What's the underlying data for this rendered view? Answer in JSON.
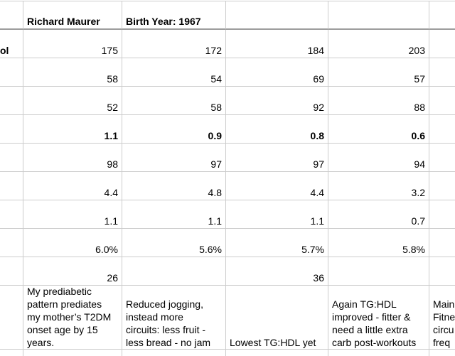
{
  "header": {
    "name": "Richard Maurer",
    "birth_year": "Birth Year: 1967"
  },
  "rows": [
    {
      "label": "ol",
      "v": [
        "175",
        "172",
        "184",
        "203"
      ]
    },
    {
      "label": "",
      "v": [
        "58",
        "54",
        "69",
        "57"
      ]
    },
    {
      "label": "",
      "v": [
        "52",
        "58",
        "92",
        "88"
      ]
    },
    {
      "label": "",
      "v": [
        "1.1",
        "0.9",
        "0.8",
        "0.6"
      ],
      "bold": true
    },
    {
      "label": "",
      "v": [
        "98",
        "97",
        "97",
        "94"
      ]
    },
    {
      "label": "",
      "v": [
        "4.4",
        "4.8",
        "4.4",
        "3.2"
      ]
    },
    {
      "label": "",
      "v": [
        "1.1",
        "1.1",
        "1.1",
        "0.7"
      ]
    },
    {
      "label": "",
      "v": [
        "6.0%",
        "5.6%",
        "5.7%",
        "5.8%"
      ]
    },
    {
      "label": "",
      "v": [
        "26",
        "",
        "36",
        ""
      ]
    }
  ],
  "notes": {
    "c1": "My prediabetic\npattern prediates\nmy mother’s T2DM\nonset age by 15\nyears.",
    "c2": "Reduced jogging,\ninstead more\ncircuits: less fruit -\nless bread - no jam",
    "c3": "Lowest TG:HDL yet",
    "c4": "Again TG:HDL\nimproved - fitter &\nneed a little extra\ncarb post-workouts",
    "c5": "Main\nFitne\ncircu\nfreq"
  },
  "colors": {
    "grid_line": "#cccccc",
    "frozen_divider": "#9c9c9c",
    "text": "#000000",
    "background": "#ffffff"
  }
}
